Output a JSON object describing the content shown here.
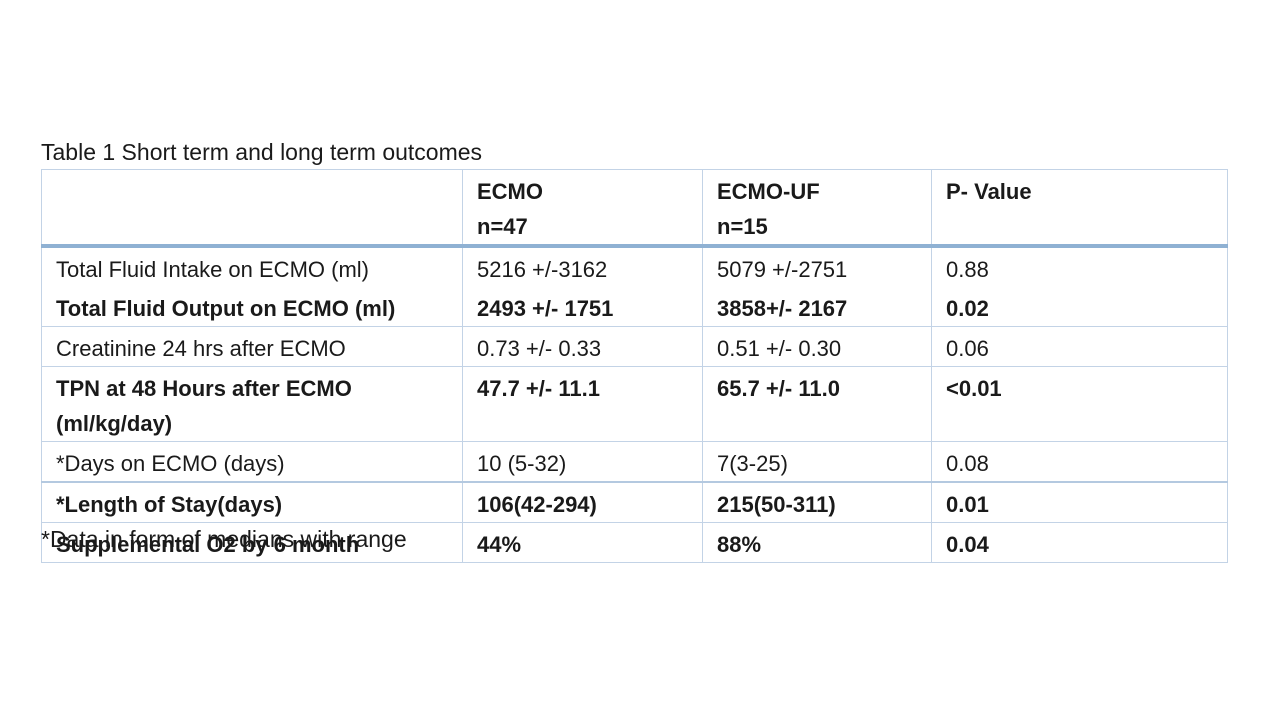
{
  "caption": "Table 1 Short term and long term outcomes",
  "header": {
    "col0": "",
    "col1_line1": "ECMO",
    "col1_line2": "n=47",
    "col2_line1": "ECMO-UF",
    "col2_line2": "n=15",
    "col3": "P- Value"
  },
  "rows": [
    {
      "label": "Total Fluid Intake on ECMO (ml)",
      "ecmo": "5216 +/-3162",
      "ecmo_uf": "5079 +/-2751",
      "p": "0.88",
      "bold": false
    },
    {
      "label": "Total Fluid Output on ECMO (ml)",
      "ecmo": "2493 +/- 1751",
      "ecmo_uf": "3858+/- 2167",
      "p": "0.02",
      "bold": true
    },
    {
      "label": "Creatinine 24 hrs after ECMO",
      "ecmo": "0.73 +/-  0.33",
      "ecmo_uf": "0.51 +/- 0.30",
      "p": "0.06",
      "bold": false
    },
    {
      "label": "TPN at 48 Hours after ECMO (ml/kg/day)",
      "ecmo": "47.7 +/- 11.1",
      "ecmo_uf": "65.7 +/- 11.0",
      "p": "<0.01",
      "bold": true
    },
    {
      "label": "*Days on ECMO (days)",
      "ecmo": "10 (5-32)",
      "ecmo_uf": "7(3-25)",
      "p": "0.08",
      "bold": false
    },
    {
      "label": "*Length of Stay(days)",
      "ecmo": "106(42-294)",
      "ecmo_uf": "215(50-311)",
      "p": "0.01",
      "bold": true
    },
    {
      "label": "Supplemental O2 by 6 month",
      "ecmo": "44%",
      "ecmo_uf": "88%",
      "p": "0.04",
      "bold": true
    }
  ],
  "footnote": "*Data in form of medians with range"
}
